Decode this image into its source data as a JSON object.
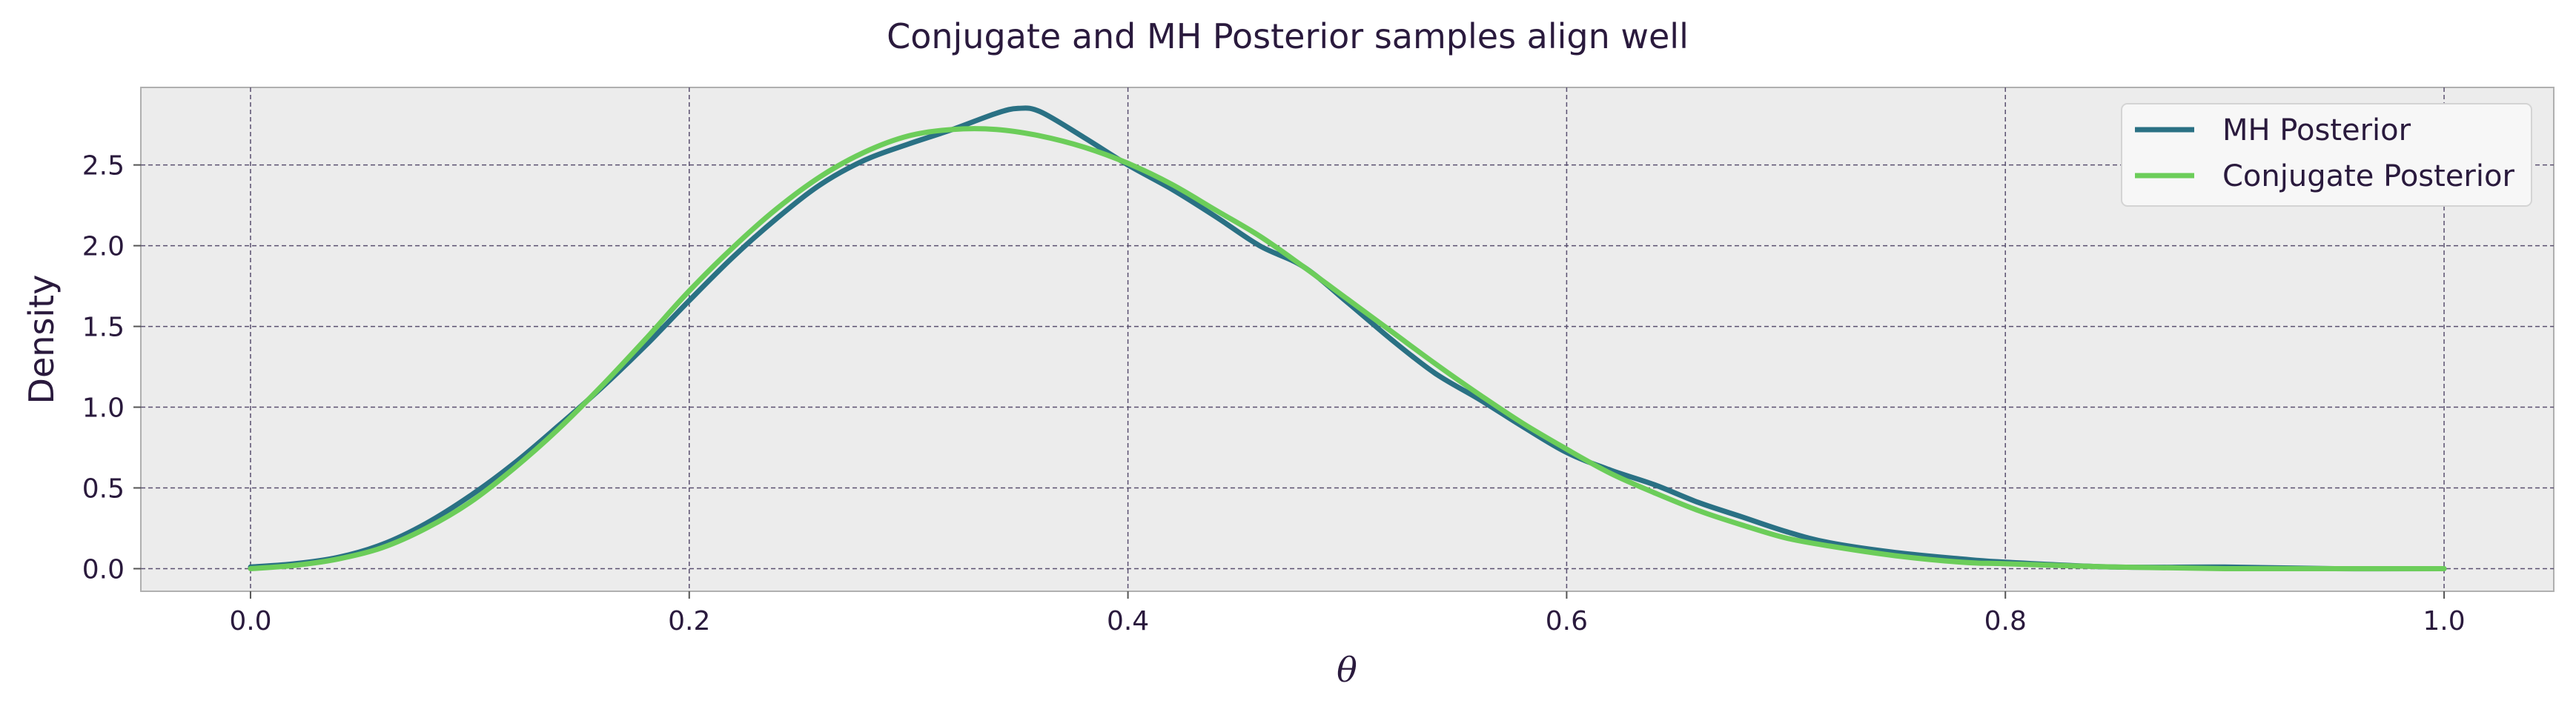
{
  "chart_data": {
    "type": "line",
    "title": "Conjugate and MH Posterior samples align well",
    "xlabel": "θ",
    "ylabel": "Density",
    "xlim": [
      -0.05,
      1.05
    ],
    "ylim": [
      -0.14,
      2.98
    ],
    "xticks": [
      "0.0",
      "0.2",
      "0.4",
      "0.6",
      "0.8",
      "1.0"
    ],
    "yticks": [
      "0.0",
      "0.5",
      "1.0",
      "1.5",
      "2.0",
      "2.5"
    ],
    "grid": true,
    "legend_position": "top-right",
    "series": [
      {
        "name": "MH Posterior",
        "color": "#2a7184",
        "x": [
          0.0,
          0.02,
          0.04,
          0.06,
          0.08,
          0.1,
          0.12,
          0.14,
          0.16,
          0.18,
          0.2,
          0.22,
          0.24,
          0.26,
          0.28,
          0.3,
          0.32,
          0.34,
          0.35,
          0.36,
          0.38,
          0.4,
          0.42,
          0.44,
          0.46,
          0.48,
          0.5,
          0.52,
          0.54,
          0.56,
          0.58,
          0.6,
          0.62,
          0.64,
          0.66,
          0.68,
          0.7,
          0.72,
          0.75,
          0.78,
          0.8,
          0.85,
          0.9,
          0.95,
          1.0
        ],
        "y": [
          0.01,
          0.03,
          0.07,
          0.15,
          0.28,
          0.45,
          0.65,
          0.88,
          1.12,
          1.38,
          1.66,
          1.93,
          2.17,
          2.38,
          2.53,
          2.63,
          2.72,
          2.82,
          2.85,
          2.83,
          2.67,
          2.5,
          2.35,
          2.18,
          2.0,
          1.87,
          1.65,
          1.42,
          1.21,
          1.05,
          0.88,
          0.72,
          0.61,
          0.52,
          0.41,
          0.32,
          0.23,
          0.16,
          0.1,
          0.06,
          0.04,
          0.01,
          0.01,
          0.0,
          0.0
        ]
      },
      {
        "name": "Conjugate Posterior",
        "color": "#6ccd5a",
        "x": [
          0.0,
          0.02,
          0.04,
          0.06,
          0.08,
          0.1,
          0.12,
          0.14,
          0.16,
          0.18,
          0.2,
          0.22,
          0.24,
          0.26,
          0.28,
          0.3,
          0.32,
          0.34,
          0.36,
          0.38,
          0.4,
          0.42,
          0.44,
          0.46,
          0.48,
          0.5,
          0.52,
          0.54,
          0.56,
          0.58,
          0.6,
          0.62,
          0.64,
          0.66,
          0.68,
          0.7,
          0.72,
          0.75,
          0.78,
          0.8,
          0.85,
          0.9,
          0.95,
          1.0
        ],
        "y": [
          0.0,
          0.02,
          0.06,
          0.13,
          0.25,
          0.41,
          0.62,
          0.86,
          1.13,
          1.42,
          1.72,
          1.99,
          2.23,
          2.43,
          2.58,
          2.68,
          2.72,
          2.72,
          2.68,
          2.61,
          2.51,
          2.38,
          2.22,
          2.06,
          1.87,
          1.67,
          1.47,
          1.27,
          1.08,
          0.9,
          0.74,
          0.59,
          0.47,
          0.36,
          0.27,
          0.19,
          0.14,
          0.08,
          0.04,
          0.03,
          0.01,
          0.0,
          0.0,
          0.0
        ]
      }
    ]
  }
}
